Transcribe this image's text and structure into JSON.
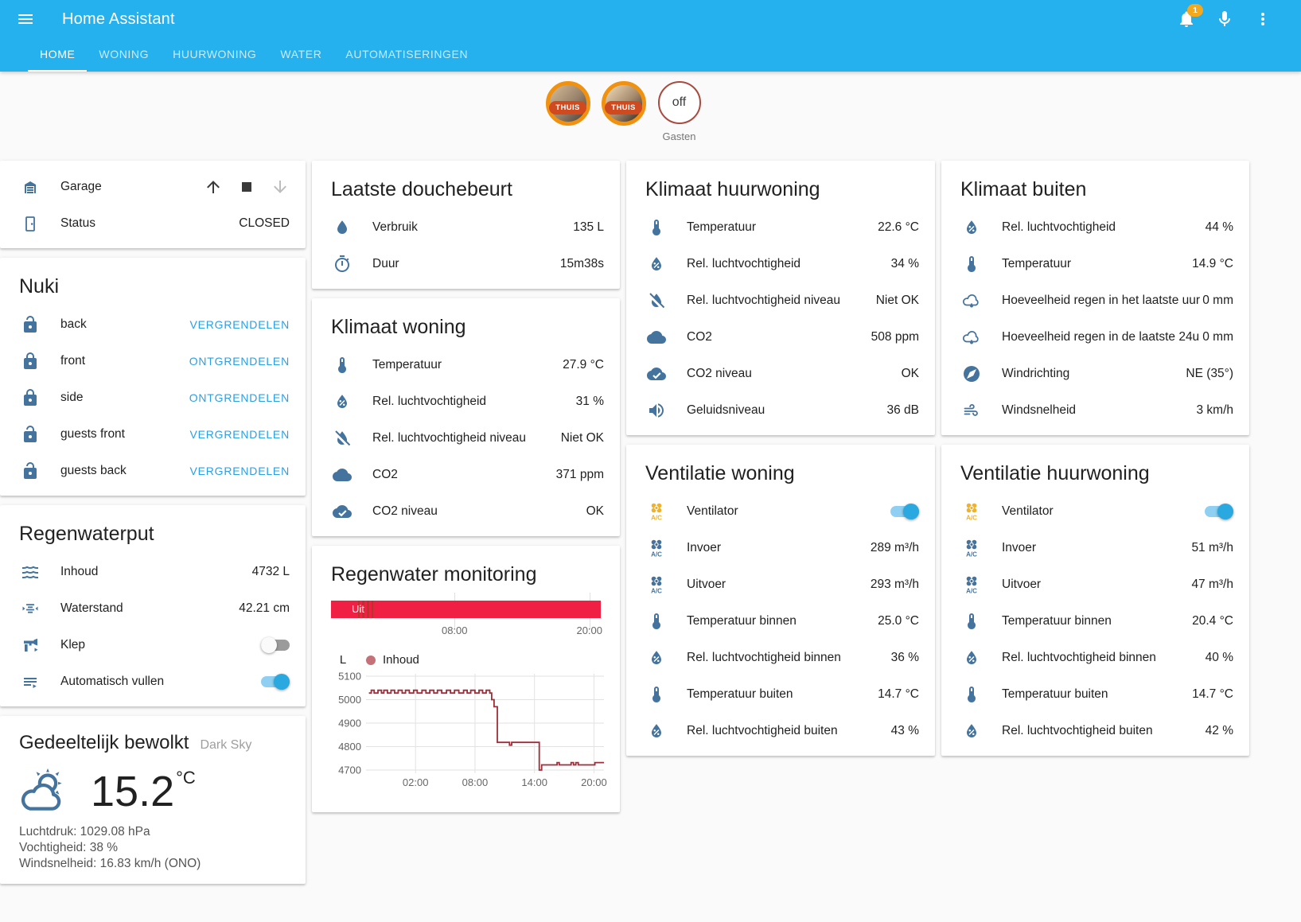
{
  "header": {
    "title": "Home Assistant",
    "notification_count": "1",
    "tabs": [
      {
        "label": "HOME",
        "active": true
      },
      {
        "label": "WONING",
        "active": false
      },
      {
        "label": "HUURWONING",
        "active": false
      },
      {
        "label": "WATER",
        "active": false
      },
      {
        "label": "AUTOMATISERINGEN",
        "active": false
      }
    ]
  },
  "badges": {
    "persons": [
      {
        "label": "THUIS"
      },
      {
        "label": "THUIS"
      }
    ],
    "guest": {
      "value": "off",
      "label": "Gasten"
    }
  },
  "cards": {
    "garage": {
      "rows": [
        {
          "icon": "garage",
          "label": "Garage",
          "control": "cover"
        },
        {
          "icon": "door",
          "label": "Status",
          "value": "CLOSED"
        }
      ]
    },
    "nuki": {
      "title": "Nuki",
      "rows": [
        {
          "icon": "lock-open",
          "label": "back",
          "action": "VERGRENDELEN"
        },
        {
          "icon": "lock",
          "label": "front",
          "action": "ONTGRENDELEN"
        },
        {
          "icon": "lock",
          "label": "side",
          "action": "ONTGRENDELEN"
        },
        {
          "icon": "lock-open",
          "label": "guests front",
          "action": "VERGRENDELEN"
        },
        {
          "icon": "lock-open",
          "label": "guests back",
          "action": "VERGRENDELEN"
        }
      ]
    },
    "regenwaterput": {
      "title": "Regenwaterput",
      "rows": [
        {
          "icon": "waves",
          "label": "Inhoud",
          "value": "4732 L"
        },
        {
          "icon": "altimeter",
          "label": "Waterstand",
          "value": "42.21 cm"
        },
        {
          "icon": "valve",
          "label": "Klep",
          "control": "toggle",
          "state": "off"
        },
        {
          "icon": "text-arrow",
          "label": "Automatisch vullen",
          "control": "toggle",
          "state": "on"
        }
      ]
    },
    "weather": {
      "title": "Gedeeltelijk bewolkt",
      "attribution": "Dark Sky",
      "temperature": "15.2",
      "temperature_unit": "°C",
      "details": [
        "Luchtdruk: 1029.08 hPa",
        "Vochtigheid: 38 %",
        "Windsnelheid: 16.83 km/h (ONO)"
      ]
    },
    "douche": {
      "title": "Laatste douchebeurt",
      "rows": [
        {
          "icon": "water",
          "label": "Verbruik",
          "value": "135 L"
        },
        {
          "icon": "timer",
          "label": "Duur",
          "value": "15m38s"
        }
      ]
    },
    "klimaat_woning": {
      "title": "Klimaat woning",
      "rows": [
        {
          "icon": "thermometer",
          "label": "Temperatuur",
          "value": "27.9 °C"
        },
        {
          "icon": "water-percent",
          "label": "Rel. luchtvochtigheid",
          "value": "31 %"
        },
        {
          "icon": "water-off",
          "label": "Rel. luchtvochtigheid niveau",
          "value": "Niet OK"
        },
        {
          "icon": "cloud",
          "label": "CO2",
          "value": "371 ppm"
        },
        {
          "icon": "cloud-check",
          "label": "CO2 niveau",
          "value": "OK"
        }
      ]
    },
    "regenwater_monitoring": {
      "title": "Regenwater monitoring"
    },
    "klimaat_huurwoning": {
      "title": "Klimaat huurwoning",
      "rows": [
        {
          "icon": "thermometer",
          "label": "Temperatuur",
          "value": "22.6 °C"
        },
        {
          "icon": "water-percent",
          "label": "Rel. luchtvochtigheid",
          "value": "34 %"
        },
        {
          "icon": "water-off",
          "label": "Rel. luchtvochtigheid niveau",
          "value": "Niet OK"
        },
        {
          "icon": "cloud",
          "label": "CO2",
          "value": "508 ppm"
        },
        {
          "icon": "cloud-check",
          "label": "CO2 niveau",
          "value": "OK"
        },
        {
          "icon": "volume",
          "label": "Geluidsniveau",
          "value": "36 dB"
        }
      ]
    },
    "ventilatie_woning": {
      "title": "Ventilatie woning",
      "rows": [
        {
          "icon": "hvac-on",
          "label": "Ventilator",
          "control": "toggle",
          "state": "on"
        },
        {
          "icon": "hvac",
          "label": "Invoer",
          "value": "289 m³/h"
        },
        {
          "icon": "hvac",
          "label": "Uitvoer",
          "value": "293 m³/h"
        },
        {
          "icon": "thermometer",
          "label": "Temperatuur binnen",
          "value": "25.0 °C"
        },
        {
          "icon": "water-percent",
          "label": "Rel. luchtvochtigheid binnen",
          "value": "36 %"
        },
        {
          "icon": "thermometer",
          "label": "Temperatuur buiten",
          "value": "14.7 °C"
        },
        {
          "icon": "water-percent",
          "label": "Rel. luchtvochtigheid buiten",
          "value": "43 %"
        }
      ]
    },
    "klimaat_buiten": {
      "title": "Klimaat buiten",
      "rows": [
        {
          "icon": "water-percent",
          "label": "Rel. luchtvochtigheid",
          "value": "44 %"
        },
        {
          "icon": "thermometer",
          "label": "Temperatuur",
          "value": "14.9 °C"
        },
        {
          "icon": "cloud-rain",
          "label": "Hoeveelheid regen in het laatste uur",
          "value": "0 mm"
        },
        {
          "icon": "cloud-rain",
          "label": "Hoeveelheid regen in de laatste 24u",
          "value": "0 mm"
        },
        {
          "icon": "compass",
          "label": "Windrichting",
          "value": "NE (35°)"
        },
        {
          "icon": "windy",
          "label": "Windsnelheid",
          "value": "3 km/h"
        }
      ]
    },
    "ventilatie_huurwoning": {
      "title": "Ventilatie huurwoning",
      "rows": [
        {
          "icon": "hvac-on",
          "label": "Ventilator",
          "control": "toggle",
          "state": "on"
        },
        {
          "icon": "hvac",
          "label": "Invoer",
          "value": "51 m³/h"
        },
        {
          "icon": "hvac",
          "label": "Uitvoer",
          "value": "47 m³/h"
        },
        {
          "icon": "thermometer",
          "label": "Temperatuur binnen",
          "value": "20.4 °C"
        },
        {
          "icon": "water-percent",
          "label": "Rel. luchtvochtigheid binnen",
          "value": "40 %"
        },
        {
          "icon": "thermometer",
          "label": "Temperatuur buiten",
          "value": "14.7 °C"
        },
        {
          "icon": "water-percent",
          "label": "Rel. luchtvochtigheid buiten",
          "value": "42 %"
        }
      ]
    }
  },
  "chart_data": {
    "type": "line",
    "title": "Regenwater monitoring",
    "ylabel": "L",
    "ylim": [
      4680,
      5110
    ],
    "yticks": [
      5100,
      5000,
      4900,
      4800,
      4700
    ],
    "xticks": [
      {
        "pos": 0.208,
        "label": "02:00"
      },
      {
        "pos": 0.458,
        "label": "08:00"
      },
      {
        "pos": 0.708,
        "label": "14:00"
      },
      {
        "pos": 0.958,
        "label": "20:00"
      }
    ],
    "timeline": {
      "state_label": "Uit",
      "bar_color": "#f02045",
      "stripes": [
        {
          "pos": 0.1,
          "w": 0.006
        },
        {
          "pos": 0.114,
          "w": 0.009
        },
        {
          "pos": 0.132,
          "w": 0.009
        },
        {
          "pos": 0.149,
          "w": 0.006
        }
      ],
      "ticks": [
        {
          "pos": 0.458,
          "label": "08:00"
        },
        {
          "pos": 0.958,
          "label": "20:00"
        }
      ]
    },
    "series": [
      {
        "name": "Inhoud",
        "legend_color": "#c4717a",
        "line_color": "#9d2f3a",
        "points": [
          [
            0.012,
            5028
          ],
          [
            0.022,
            5040
          ],
          [
            0.034,
            5028
          ],
          [
            0.05,
            5040
          ],
          [
            0.065,
            5028
          ],
          [
            0.075,
            5040
          ],
          [
            0.09,
            5028
          ],
          [
            0.105,
            5040
          ],
          [
            0.12,
            5028
          ],
          [
            0.135,
            5040
          ],
          [
            0.152,
            5028
          ],
          [
            0.166,
            5040
          ],
          [
            0.182,
            5028
          ],
          [
            0.2,
            5040
          ],
          [
            0.215,
            5028
          ],
          [
            0.235,
            5040
          ],
          [
            0.252,
            5028
          ],
          [
            0.268,
            5040
          ],
          [
            0.285,
            5028
          ],
          [
            0.3,
            5040
          ],
          [
            0.318,
            5028
          ],
          [
            0.338,
            5040
          ],
          [
            0.355,
            5028
          ],
          [
            0.372,
            5040
          ],
          [
            0.39,
            5028
          ],
          [
            0.41,
            5040
          ],
          [
            0.425,
            5028
          ],
          [
            0.44,
            5040
          ],
          [
            0.458,
            5028
          ],
          [
            0.475,
            5040
          ],
          [
            0.49,
            5028
          ],
          [
            0.505,
            5040
          ],
          [
            0.52,
            5028
          ],
          [
            0.528,
            5000
          ],
          [
            0.538,
            4970
          ],
          [
            0.552,
            4818
          ],
          [
            0.598,
            4818
          ],
          [
            0.603,
            4806
          ],
          [
            0.612,
            4818
          ],
          [
            0.722,
            4818
          ],
          [
            0.728,
            4700
          ],
          [
            0.738,
            4722
          ],
          [
            0.798,
            4722
          ],
          [
            0.803,
            4732
          ],
          [
            0.812,
            4722
          ],
          [
            0.856,
            4722
          ],
          [
            0.862,
            4732
          ],
          [
            0.872,
            4722
          ],
          [
            0.882,
            4732
          ],
          [
            0.892,
            4722
          ],
          [
            0.955,
            4722
          ],
          [
            0.962,
            4732
          ],
          [
            1.0,
            4732
          ]
        ]
      }
    ]
  }
}
